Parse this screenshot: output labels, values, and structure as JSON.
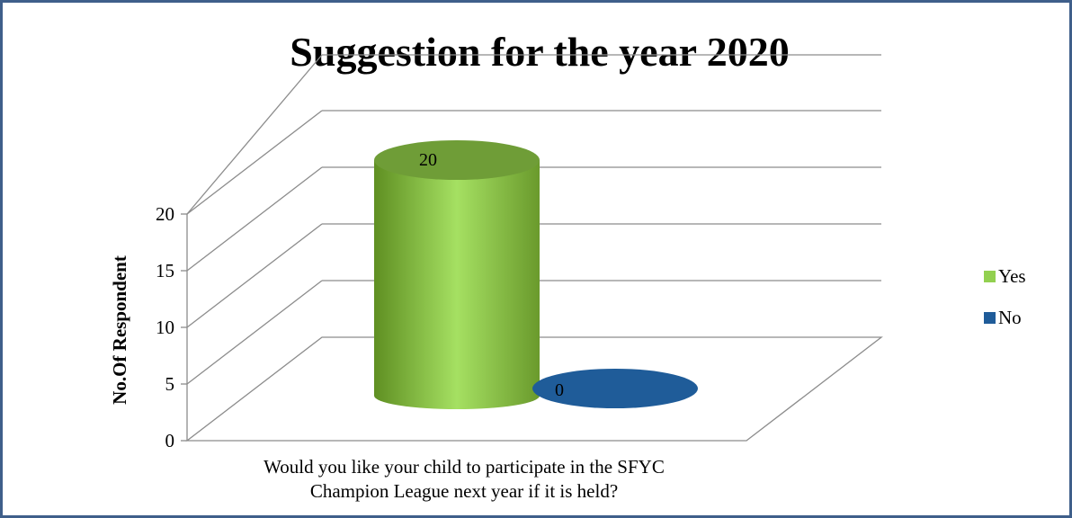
{
  "chart_data": {
    "type": "bar",
    "title": "Suggestion for the year 2020",
    "ylabel": "No.Of Respondent",
    "categories": [
      "Would you like your child to participate in the SFYC Champion League next year if it is held?"
    ],
    "category_lines": [
      "Would you like your child to participate in the SFYC",
      "Champion League next year if it is held?"
    ],
    "series": [
      {
        "name": "Yes",
        "values": [
          20
        ],
        "color": "#92d050"
      },
      {
        "name": "No",
        "values": [
          0
        ],
        "color": "#1f5c99"
      }
    ],
    "ylim": [
      0,
      20
    ],
    "yticks": [
      0,
      5,
      10,
      15,
      20
    ],
    "grid": true,
    "legend": "right",
    "bar_shape": "3d-cylinder"
  }
}
